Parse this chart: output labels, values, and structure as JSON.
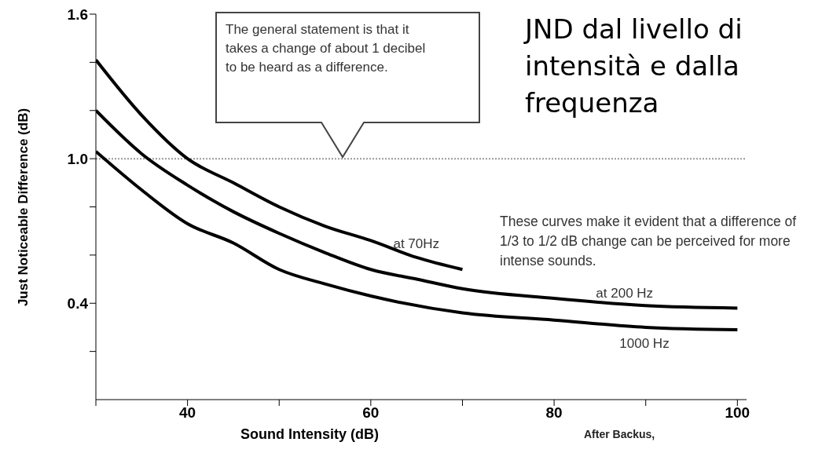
{
  "chart_data": {
    "type": "line",
    "title": "JND dal livello di intensità e dalla frequenza",
    "xlabel": "Sound Intensity (dB)",
    "ylabel": "Just Noticeable Difference (dB)",
    "series": [
      {
        "name": "at 70Hz",
        "color": "#000000",
        "x": [
          30,
          35,
          40,
          45,
          50,
          55,
          60,
          65,
          70
        ],
        "values": [
          1.41,
          1.18,
          1.0,
          0.9,
          0.8,
          0.72,
          0.66,
          0.59,
          0.54
        ]
      },
      {
        "name": "at 200 Hz",
        "color": "#000000",
        "x": [
          30,
          35,
          40,
          45,
          50,
          55,
          60,
          65,
          70,
          80,
          90,
          100
        ],
        "values": [
          1.2,
          1.02,
          0.89,
          0.78,
          0.69,
          0.61,
          0.54,
          0.5,
          0.46,
          0.42,
          0.39,
          0.38
        ]
      },
      {
        "name": "1000 Hz",
        "color": "#000000",
        "x": [
          30,
          35,
          40,
          45,
          50,
          55,
          60,
          70,
          80,
          90,
          100
        ],
        "values": [
          1.03,
          0.87,
          0.73,
          0.65,
          0.54,
          0.48,
          0.43,
          0.36,
          0.33,
          0.3,
          0.29
        ]
      }
    ],
    "xlim": [
      30,
      101
    ],
    "xticks": [
      {
        "value": 30,
        "label": null
      },
      40,
      {
        "value": 50,
        "label": null
      },
      60,
      {
        "value": 70,
        "label": null
      },
      80,
      {
        "value": 90,
        "label": null
      },
      100
    ],
    "ylim": [
      0,
      1.6
    ],
    "yticks": [
      {
        "value": 0.2,
        "label": null
      },
      0.4,
      {
        "value": 0.6,
        "label": null
      },
      {
        "value": 0.8,
        "label": null
      },
      {
        "value": 1.0,
        "label": "1.0"
      },
      {
        "value": 1.2,
        "label": null
      },
      {
        "value": 1.4,
        "label": null
      },
      1.6
    ],
    "ref_lines": [
      {
        "axis": "y",
        "value": 1.0,
        "color": "#999999",
        "line_style": "dotted"
      }
    ],
    "annotations": [
      "The general statement is that it takes a change of about 1 decibel to be heard as a difference.",
      "These curves make it evident that a difference of 1/3 to 1/2 dB change can be perceived for more intense sounds.",
      "After Backus,"
    ],
    "grid": false,
    "legend": false,
    "marker": "none",
    "line_style": "solid"
  }
}
